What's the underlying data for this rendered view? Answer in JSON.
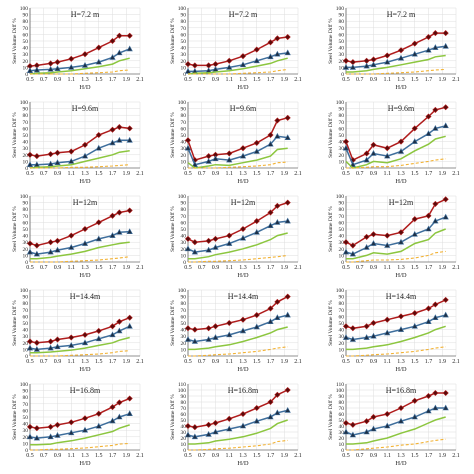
{
  "colors": {
    "red": "#b01c1c",
    "blue": "#3e6e9c",
    "green": "#8cc63f",
    "orange": "#f2b234",
    "grid": "#dddddd",
    "axis": "#333333"
  },
  "shared": {
    "x_ticks": [
      "0.5",
      "0.7",
      "0.9",
      "1.1",
      "1.3",
      "1.5",
      "1.7",
      "1.9",
      "2.1"
    ],
    "ylabel": "Steel Volume Diff %",
    "xlabel": "H/D"
  },
  "chart_data": [
    {
      "type": "line",
      "title": "H=7.2 m",
      "ylim": [
        0,
        100
      ],
      "yticks": [
        0,
        10,
        20,
        30,
        40,
        50,
        60,
        70,
        80,
        90,
        100
      ],
      "x": [
        0.5,
        0.6,
        0.8,
        0.9,
        1.1,
        1.3,
        1.5,
        1.7,
        1.8,
        1.95
      ],
      "series": [
        {
          "values": [
            12,
            13,
            16,
            18,
            23,
            30,
            40,
            50,
            58,
            58
          ]
        },
        {
          "values": [
            5,
            6,
            7,
            8,
            10,
            13,
            18,
            25,
            32,
            38
          ]
        },
        {
          "values": [
            0,
            1,
            2,
            3,
            5,
            8,
            11,
            15,
            20,
            24
          ]
        },
        {
          "values": [
            0,
            0,
            0,
            0,
            0,
            1,
            2,
            3,
            5,
            6
          ]
        }
      ]
    },
    {
      "type": "line",
      "title": "H=7.2 m",
      "ylim": [
        0,
        100
      ],
      "yticks": [
        0,
        10,
        20,
        30,
        40,
        50,
        60,
        70,
        80,
        90,
        100
      ],
      "x": [
        0.5,
        0.6,
        0.8,
        0.9,
        1.1,
        1.3,
        1.5,
        1.7,
        1.8,
        1.95
      ],
      "series": [
        {
          "values": [
            15,
            13,
            13,
            15,
            20,
            27,
            37,
            48,
            54,
            56
          ]
        },
        {
          "values": [
            4,
            4,
            5,
            7,
            10,
            14,
            20,
            26,
            30,
            32
          ]
        },
        {
          "values": [
            0,
            1,
            2,
            3,
            5,
            8,
            12,
            16,
            20,
            24
          ]
        },
        {
          "values": [
            0,
            0,
            0,
            0,
            0,
            1,
            2,
            3,
            5,
            7
          ]
        }
      ]
    },
    {
      "type": "line",
      "title": "H=7.2 m",
      "ylim": [
        0,
        100
      ],
      "yticks": [
        0,
        10,
        20,
        30,
        40,
        50,
        60,
        70,
        80,
        90,
        100
      ],
      "x": [
        0.5,
        0.6,
        0.8,
        0.9,
        1.1,
        1.3,
        1.5,
        1.7,
        1.8,
        1.95
      ],
      "series": [
        {
          "values": [
            20,
            18,
            20,
            22,
            28,
            36,
            46,
            56,
            62,
            62
          ]
        },
        {
          "values": [
            10,
            10,
            12,
            14,
            18,
            24,
            30,
            36,
            40,
            42
          ]
        },
        {
          "values": [
            3,
            3,
            5,
            7,
            10,
            14,
            18,
            22,
            26,
            28
          ]
        },
        {
          "values": [
            0,
            0,
            0,
            0,
            1,
            2,
            3,
            5,
            6,
            7
          ]
        }
      ]
    },
    {
      "type": "line",
      "title": "H=9.6m",
      "ylim": [
        0,
        100
      ],
      "yticks": [
        0,
        10,
        20,
        30,
        40,
        50,
        60,
        70,
        80,
        90,
        100
      ],
      "x": [
        0.5,
        0.6,
        0.8,
        0.9,
        1.1,
        1.3,
        1.5,
        1.7,
        1.8,
        1.95
      ],
      "series": [
        {
          "values": [
            20,
            18,
            21,
            23,
            25,
            35,
            50,
            58,
            62,
            60
          ]
        },
        {
          "values": [
            5,
            5,
            6,
            8,
            10,
            18,
            30,
            38,
            42,
            42
          ]
        },
        {
          "values": [
            0,
            1,
            2,
            3,
            5,
            10,
            15,
            20,
            24,
            26
          ]
        },
        {
          "values": [
            0,
            0,
            0,
            0,
            1,
            1,
            2,
            3,
            4,
            5
          ]
        }
      ]
    },
    {
      "type": "line",
      "title": "H=9.6m",
      "ylim": [
        0,
        100
      ],
      "yticks": [
        0,
        10,
        20,
        30,
        40,
        50,
        60,
        70,
        80,
        90,
        100
      ],
      "x": [
        0.5,
        0.6,
        0.8,
        0.9,
        1.1,
        1.3,
        1.5,
        1.7,
        1.8,
        1.95
      ],
      "series": [
        {
          "values": [
            42,
            12,
            18,
            20,
            22,
            30,
            38,
            50,
            72,
            76
          ]
        },
        {
          "values": [
            30,
            5,
            10,
            14,
            12,
            18,
            25,
            36,
            48,
            46
          ]
        },
        {
          "values": [
            8,
            0,
            3,
            5,
            4,
            8,
            12,
            18,
            28,
            30
          ]
        },
        {
          "values": [
            0,
            0,
            0,
            0,
            1,
            2,
            3,
            5,
            8,
            9
          ]
        }
      ]
    },
    {
      "type": "line",
      "title": "H=9.6m",
      "ylim": [
        0,
        100
      ],
      "yticks": [
        0,
        10,
        20,
        30,
        40,
        50,
        60,
        70,
        80,
        90,
        100
      ],
      "x": [
        0.5,
        0.6,
        0.8,
        0.9,
        1.1,
        1.3,
        1.5,
        1.7,
        1.8,
        1.95
      ],
      "series": [
        {
          "values": [
            40,
            12,
            22,
            35,
            30,
            40,
            60,
            78,
            88,
            92
          ]
        },
        {
          "values": [
            30,
            5,
            12,
            22,
            18,
            25,
            40,
            52,
            60,
            64
          ]
        },
        {
          "values": [
            10,
            0,
            5,
            10,
            8,
            14,
            26,
            36,
            44,
            48
          ]
        },
        {
          "values": [
            0,
            0,
            1,
            2,
            2,
            4,
            7,
            10,
            12,
            14
          ]
        }
      ]
    },
    {
      "type": "line",
      "title": "H=12m",
      "ylim": [
        0,
        100
      ],
      "yticks": [
        0,
        10,
        20,
        30,
        40,
        50,
        60,
        70,
        80,
        90,
        100
      ],
      "x": [
        0.5,
        0.6,
        0.8,
        0.9,
        1.1,
        1.3,
        1.5,
        1.7,
        1.8,
        1.95
      ],
      "series": [
        {
          "values": [
            28,
            25,
            30,
            32,
            40,
            50,
            60,
            70,
            75,
            78
          ]
        },
        {
          "values": [
            15,
            12,
            15,
            18,
            22,
            28,
            35,
            40,
            45,
            46
          ]
        },
        {
          "values": [
            5,
            5,
            7,
            9,
            12,
            16,
            22,
            26,
            28,
            30
          ]
        },
        {
          "values": [
            0,
            0,
            0,
            0,
            1,
            2,
            3,
            5,
            6,
            8
          ]
        }
      ]
    },
    {
      "type": "line",
      "title": "H=12m",
      "ylim": [
        0,
        100
      ],
      "yticks": [
        0,
        10,
        20,
        30,
        40,
        50,
        60,
        70,
        80,
        90,
        100
      ],
      "x": [
        0.5,
        0.6,
        0.8,
        0.9,
        1.1,
        1.3,
        1.5,
        1.7,
        1.8,
        1.95
      ],
      "series": [
        {
          "values": [
            35,
            30,
            32,
            35,
            40,
            50,
            62,
            75,
            85,
            90
          ]
        },
        {
          "values": [
            20,
            15,
            18,
            22,
            28,
            36,
            45,
            55,
            60,
            62
          ]
        },
        {
          "values": [
            5,
            5,
            8,
            11,
            15,
            20,
            26,
            34,
            40,
            44
          ]
        },
        {
          "values": [
            0,
            0,
            1,
            1,
            2,
            3,
            5,
            7,
            8,
            10
          ]
        }
      ]
    },
    {
      "type": "line",
      "title": "H=12m",
      "ylim": [
        0,
        100
      ],
      "yticks": [
        0,
        10,
        20,
        30,
        40,
        50,
        60,
        70,
        80,
        90,
        100
      ],
      "x": [
        0.5,
        0.6,
        0.8,
        0.9,
        1.1,
        1.3,
        1.5,
        1.7,
        1.8,
        1.95
      ],
      "series": [
        {
          "values": [
            30,
            25,
            38,
            42,
            40,
            45,
            65,
            70,
            88,
            95
          ]
        },
        {
          "values": [
            15,
            12,
            22,
            28,
            25,
            30,
            42,
            50,
            62,
            68
          ]
        },
        {
          "values": [
            5,
            5,
            10,
            14,
            12,
            16,
            28,
            34,
            44,
            50
          ]
        },
        {
          "values": [
            0,
            0,
            2,
            3,
            3,
            4,
            6,
            10,
            14,
            16
          ]
        }
      ]
    },
    {
      "type": "line",
      "title": "H=14.4m",
      "ylim": [
        0,
        100
      ],
      "yticks": [
        0,
        10,
        20,
        30,
        40,
        50,
        60,
        70,
        80,
        90,
        100
      ],
      "x": [
        0.5,
        0.6,
        0.8,
        0.9,
        1.1,
        1.3,
        1.5,
        1.7,
        1.8,
        1.95
      ],
      "series": [
        {
          "values": [
            22,
            20,
            22,
            25,
            28,
            32,
            38,
            45,
            52,
            58
          ]
        },
        {
          "values": [
            12,
            10,
            12,
            14,
            16,
            20,
            26,
            32,
            38,
            45
          ]
        },
        {
          "values": [
            5,
            5,
            6,
            7,
            9,
            12,
            16,
            20,
            24,
            28
          ]
        },
        {
          "values": [
            0,
            0,
            0,
            0,
            1,
            2,
            3,
            5,
            7,
            8
          ]
        }
      ]
    },
    {
      "type": "line",
      "title": "H=14.4m",
      "ylim": [
        0,
        100
      ],
      "yticks": [
        0,
        10,
        20,
        30,
        40,
        50,
        60,
        70,
        80,
        90,
        100
      ],
      "x": [
        0.5,
        0.6,
        0.8,
        0.9,
        1.1,
        1.3,
        1.5,
        1.7,
        1.8,
        1.95
      ],
      "series": [
        {
          "values": [
            42,
            40,
            42,
            45,
            50,
            55,
            62,
            72,
            82,
            90
          ]
        },
        {
          "values": [
            25,
            22,
            25,
            28,
            32,
            38,
            44,
            52,
            58,
            62
          ]
        },
        {
          "values": [
            10,
            10,
            12,
            14,
            17,
            22,
            28,
            35,
            40,
            44
          ]
        },
        {
          "values": [
            0,
            0,
            1,
            2,
            3,
            5,
            7,
            10,
            12,
            14
          ]
        }
      ]
    },
    {
      "type": "line",
      "title": "H=14.4m",
      "ylim": [
        0,
        100
      ],
      "yticks": [
        0,
        10,
        20,
        30,
        40,
        50,
        60,
        70,
        80,
        90,
        100
      ],
      "x": [
        0.5,
        0.6,
        0.8,
        0.9,
        1.1,
        1.3,
        1.5,
        1.7,
        1.8,
        1.95
      ],
      "series": [
        {
          "values": [
            45,
            42,
            45,
            50,
            55,
            60,
            65,
            72,
            78,
            85
          ]
        },
        {
          "values": [
            28,
            25,
            28,
            30,
            35,
            40,
            45,
            52,
            58,
            62
          ]
        },
        {
          "values": [
            10,
            10,
            12,
            14,
            17,
            22,
            28,
            35,
            40,
            45
          ]
        },
        {
          "values": [
            0,
            0,
            1,
            2,
            3,
            5,
            7,
            10,
            12,
            14
          ]
        }
      ]
    },
    {
      "type": "line",
      "title": "H=16.8m",
      "ylim": [
        0,
        100
      ],
      "yticks": [
        0,
        10,
        20,
        30,
        40,
        50,
        60,
        70,
        80,
        90,
        100
      ],
      "x": [
        0.5,
        0.6,
        0.8,
        0.9,
        1.1,
        1.3,
        1.5,
        1.7,
        1.8,
        1.95
      ],
      "series": [
        {
          "values": [
            35,
            33,
            35,
            38,
            42,
            48,
            55,
            65,
            72,
            78
          ]
        },
        {
          "values": [
            20,
            18,
            20,
            22,
            26,
            30,
            36,
            44,
            50,
            55
          ]
        },
        {
          "values": [
            8,
            8,
            9,
            11,
            14,
            18,
            23,
            28,
            33,
            38
          ]
        },
        {
          "values": [
            0,
            0,
            1,
            1,
            2,
            3,
            5,
            7,
            9,
            10
          ]
        }
      ]
    },
    {
      "type": "line",
      "title": "H=16.8m",
      "ylim": [
        0,
        110
      ],
      "yticks": [
        0,
        10,
        20,
        30,
        40,
        50,
        60,
        70,
        80,
        90,
        100,
        110
      ],
      "x": [
        0.5,
        0.6,
        0.8,
        0.9,
        1.1,
        1.3,
        1.5,
        1.7,
        1.8,
        1.95
      ],
      "series": [
        {
          "values": [
            40,
            38,
            42,
            45,
            52,
            60,
            70,
            80,
            92,
            100
          ]
        },
        {
          "values": [
            25,
            22,
            26,
            30,
            35,
            40,
            48,
            55,
            62,
            66
          ]
        },
        {
          "values": [
            10,
            10,
            12,
            15,
            18,
            22,
            28,
            36,
            44,
            50
          ]
        },
        {
          "values": [
            0,
            0,
            1,
            2,
            3,
            5,
            7,
            10,
            14,
            16
          ]
        }
      ]
    },
    {
      "type": "line",
      "title": "H=16.8m",
      "ylim": [
        0,
        110
      ],
      "yticks": [
        0,
        10,
        20,
        30,
        40,
        50,
        60,
        70,
        80,
        90,
        100,
        110
      ],
      "x": [
        0.5,
        0.6,
        0.8,
        0.9,
        1.1,
        1.3,
        1.5,
        1.7,
        1.8,
        1.95
      ],
      "series": [
        {
          "values": [
            45,
            42,
            48,
            55,
            60,
            70,
            82,
            90,
            95,
            95
          ]
        },
        {
          "values": [
            30,
            25,
            30,
            35,
            40,
            48,
            55,
            65,
            70,
            70
          ]
        },
        {
          "values": [
            10,
            10,
            12,
            15,
            20,
            28,
            35,
            45,
            50,
            55
          ]
        },
        {
          "values": [
            0,
            0,
            2,
            3,
            5,
            8,
            10,
            14,
            16,
            18
          ]
        }
      ]
    }
  ]
}
